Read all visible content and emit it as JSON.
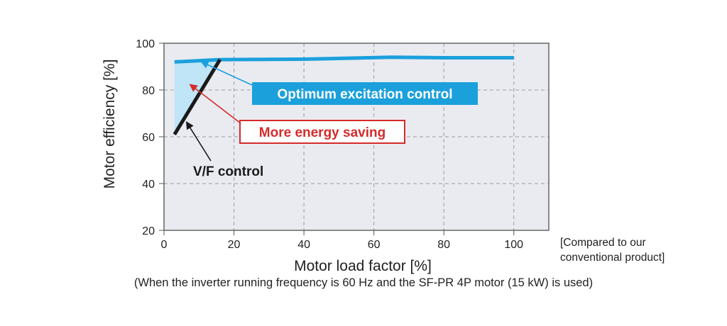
{
  "chart_data": {
    "type": "line",
    "xlabel": "Motor load factor [%]",
    "ylabel": "Motor efficiency [%]",
    "xlim": [
      0,
      110
    ],
    "ylim": [
      20,
      100
    ],
    "xticks": [
      0,
      20,
      40,
      60,
      80,
      100
    ],
    "yticks": [
      20,
      40,
      60,
      80,
      100
    ],
    "grid": true,
    "series": [
      {
        "name": "Optimum excitation control",
        "color": "#1ba0dc",
        "x": [
          3,
          16,
          40,
          65,
          80,
          100
        ],
        "y": [
          92,
          93,
          93.2,
          94,
          93.8,
          93.8
        ]
      },
      {
        "name": "V/F control",
        "color": "#1a1a1a",
        "x": [
          3,
          16
        ],
        "y": [
          61,
          93
        ]
      }
    ],
    "shaded_region": {
      "label": "More energy saving",
      "fill": "#bfe5f7",
      "between": [
        "Optimum excitation control",
        "V/F control"
      ],
      "x": [
        3,
        16
      ]
    },
    "annotations": [
      {
        "text": "Optimum excitation control",
        "style": "filled-box",
        "color": "#1ba0dc",
        "points_to": [
          10,
          93
        ]
      },
      {
        "text": "More energy saving",
        "style": "outlined-box",
        "color": "#d52b2b",
        "points_to": [
          7,
          83
        ]
      },
      {
        "text": "V/F control",
        "style": "plain",
        "color": "#1a1a1a",
        "points_to": [
          6,
          67
        ]
      }
    ]
  },
  "notes": {
    "compare_line1": "[Compared to our",
    "compare_line2": "conventional product]",
    "footnote": "(When the inverter running frequency is 60 Hz and the SF-PR 4P motor (15 kW) is used)"
  }
}
